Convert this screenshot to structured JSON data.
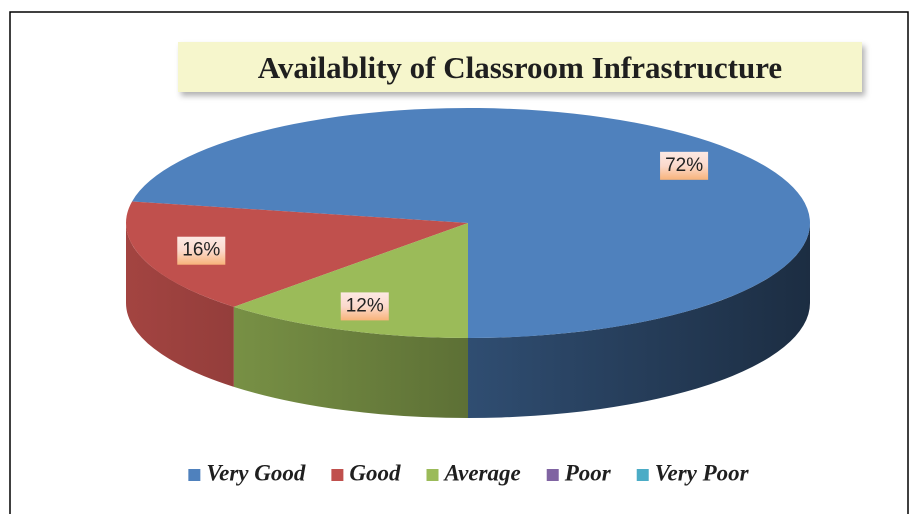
{
  "chart_data": {
    "type": "pie3d",
    "title": "Availablity of Classroom Infrastructure",
    "categories": [
      "Very Good",
      "Good",
      "Average",
      "Poor",
      "Very Poor"
    ],
    "values": [
      72,
      16,
      12,
      0,
      0
    ],
    "value_labels": [
      "72%",
      "16%",
      "12%",
      null,
      null
    ],
    "colors": [
      "#4f81bd",
      "#c0504d",
      "#9bbb59",
      "#8064a2",
      "#4bacc6"
    ],
    "legend": "bottom"
  }
}
